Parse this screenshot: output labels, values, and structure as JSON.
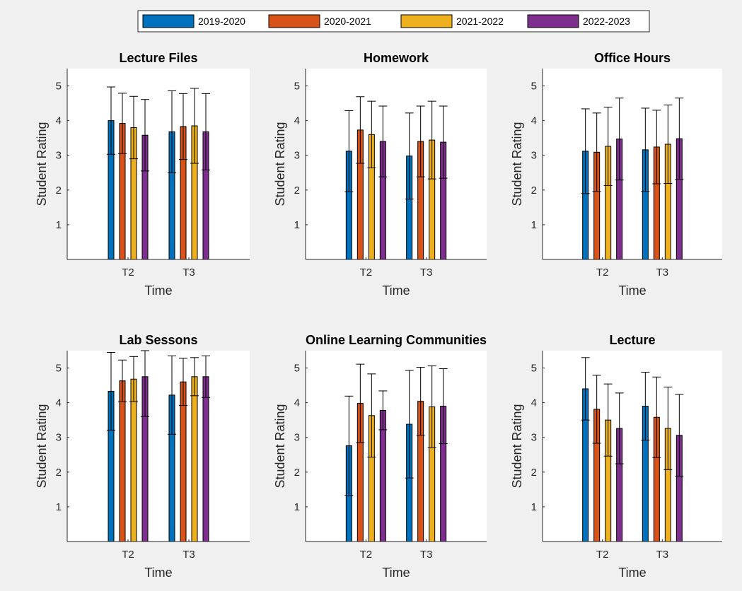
{
  "chart_data": [
    {
      "type": "bar",
      "title": "Lecture Files",
      "xlabel": "Time",
      "ylabel": "Student Rating",
      "categories": [
        "T2",
        "T3"
      ],
      "yticks": [
        "1",
        "2",
        "3",
        "4",
        "5"
      ],
      "ylim": [
        0,
        5.5
      ],
      "series": [
        {
          "name": "2019-2020",
          "values": [
            4.0,
            3.68
          ],
          "errors": [
            0.97,
            1.18
          ]
        },
        {
          "name": "2020-2021",
          "values": [
            3.92,
            3.83
          ],
          "errors": [
            0.87,
            0.95
          ]
        },
        {
          "name": "2021-2022",
          "values": [
            3.8,
            3.85
          ],
          "errors": [
            0.9,
            1.08
          ]
        },
        {
          "name": "2022-2023",
          "values": [
            3.58,
            3.68
          ],
          "errors": [
            1.03,
            1.1
          ]
        }
      ]
    },
    {
      "type": "bar",
      "title": "Homework",
      "xlabel": "Time",
      "ylabel": "Student Rating",
      "categories": [
        "T2",
        "T3"
      ],
      "yticks": [
        "1",
        "2",
        "3",
        "4",
        "5"
      ],
      "ylim": [
        0,
        5.5
      ],
      "series": [
        {
          "name": "2019-2020",
          "values": [
            3.12,
            2.98
          ],
          "errors": [
            1.17,
            1.24
          ]
        },
        {
          "name": "2020-2021",
          "values": [
            3.73,
            3.4
          ],
          "errors": [
            0.96,
            1.02
          ]
        },
        {
          "name": "2021-2022",
          "values": [
            3.6,
            3.44
          ],
          "errors": [
            0.96,
            1.12
          ]
        },
        {
          "name": "2022-2023",
          "values": [
            3.4,
            3.38
          ],
          "errors": [
            1.02,
            1.04
          ]
        }
      ]
    },
    {
      "type": "bar",
      "title": "Office Hours",
      "xlabel": "Time",
      "ylabel": "Student Rating",
      "categories": [
        "T2",
        "T3"
      ],
      "yticks": [
        "1",
        "2",
        "3",
        "4",
        "5"
      ],
      "ylim": [
        0,
        5.5
      ],
      "series": [
        {
          "name": "2019-2020",
          "values": [
            3.12,
            3.16
          ],
          "errors": [
            1.22,
            1.2
          ]
        },
        {
          "name": "2020-2021",
          "values": [
            3.09,
            3.24
          ],
          "errors": [
            1.13,
            1.06
          ]
        },
        {
          "name": "2021-2022",
          "values": [
            3.26,
            3.32
          ],
          "errors": [
            1.13,
            1.13
          ]
        },
        {
          "name": "2022-2023",
          "values": [
            3.47,
            3.48
          ],
          "errors": [
            1.18,
            1.17
          ]
        }
      ]
    },
    {
      "type": "bar",
      "title": "Lab Sessons",
      "xlabel": "Time",
      "ylabel": "Student Rating",
      "categories": [
        "T2",
        "T3"
      ],
      "yticks": [
        "1",
        "2",
        "3",
        "4",
        "5"
      ],
      "ylim": [
        0,
        5.5
      ],
      "series": [
        {
          "name": "2019-2020",
          "values": [
            4.33,
            4.22
          ],
          "errors": [
            1.12,
            1.13
          ]
        },
        {
          "name": "2020-2021",
          "values": [
            4.63,
            4.6
          ],
          "errors": [
            0.6,
            0.68
          ]
        },
        {
          "name": "2021-2022",
          "values": [
            4.68,
            4.75
          ],
          "errors": [
            0.65,
            0.55
          ]
        },
        {
          "name": "2022-2023",
          "values": [
            4.75,
            4.75
          ],
          "errors": [
            1.15,
            0.6
          ]
        }
      ]
    },
    {
      "type": "bar",
      "title": "Online Learning Communities",
      "xlabel": "Time",
      "ylabel": "Student Rating",
      "categories": [
        "T2",
        "T3"
      ],
      "yticks": [
        "1",
        "2",
        "3",
        "4",
        "5"
      ],
      "ylim": [
        0,
        5.5
      ],
      "series": [
        {
          "name": "2019-2020",
          "values": [
            2.76,
            3.38
          ],
          "errors": [
            1.43,
            1.55
          ]
        },
        {
          "name": "2020-2021",
          "values": [
            3.98,
            4.04
          ],
          "errors": [
            1.13,
            0.98
          ]
        },
        {
          "name": "2021-2022",
          "values": [
            3.63,
            3.88
          ],
          "errors": [
            1.2,
            1.18
          ]
        },
        {
          "name": "2022-2023",
          "values": [
            3.78,
            3.9
          ],
          "errors": [
            0.56,
            1.08
          ]
        }
      ]
    },
    {
      "type": "bar",
      "title": "Lecture",
      "xlabel": "Time",
      "ylabel": "Student Rating",
      "categories": [
        "T2",
        "T3"
      ],
      "yticks": [
        "1",
        "2",
        "3",
        "4",
        "5"
      ],
      "ylim": [
        0,
        5.5
      ],
      "series": [
        {
          "name": "2019-2020",
          "values": [
            4.4,
            3.9
          ],
          "errors": [
            0.9,
            0.98
          ]
        },
        {
          "name": "2020-2021",
          "values": [
            3.81,
            3.58
          ],
          "errors": [
            0.98,
            1.16
          ]
        },
        {
          "name": "2021-2022",
          "values": [
            3.5,
            3.26
          ],
          "errors": [
            1.04,
            1.19
          ]
        },
        {
          "name": "2022-2023",
          "values": [
            3.26,
            3.06
          ],
          "errors": [
            1.02,
            1.18
          ]
        }
      ]
    }
  ],
  "legend": {
    "entries": [
      "2019-2020",
      "2020-2021",
      "2021-2022",
      "2022-2023"
    ],
    "colors": [
      "#0072BD",
      "#D95319",
      "#EDB120",
      "#7E2F8E"
    ],
    "placement": "top-center"
  }
}
